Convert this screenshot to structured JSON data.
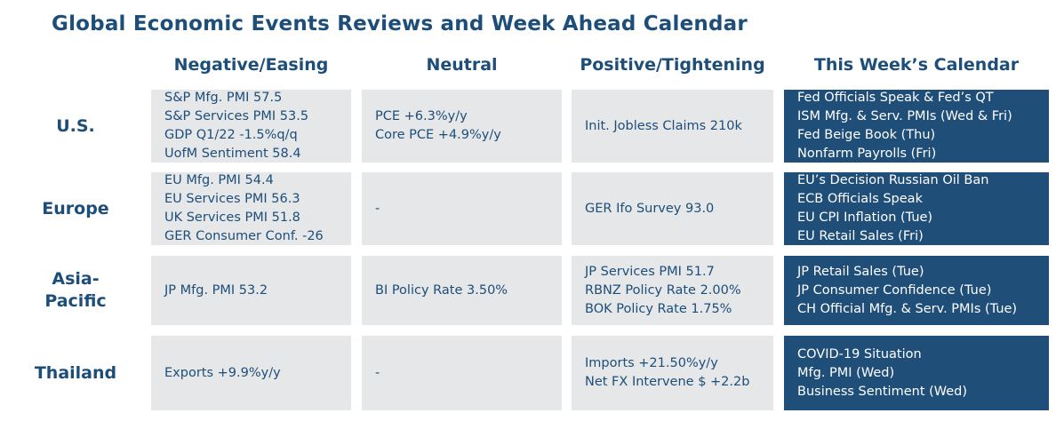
{
  "title": "Global Economic Events Reviews and Week Ahead Calendar",
  "columns": [
    "Negative/Easing",
    "Neutral",
    "Positive/Tightening",
    "This Week’s Calendar"
  ],
  "rows": [
    {
      "label": "U.S.",
      "negative": [
        "S&P Mfg. PMI 57.5",
        "S&P Services PMI 53.5",
        "GDP Q1/22 -1.5%q/q",
        "UofM Sentiment 58.4"
      ],
      "neutral": [
        "PCE +6.3%y/y",
        "Core PCE +4.9%y/y"
      ],
      "positive": [
        "Init. Jobless Claims 210k"
      ],
      "calendar": [
        "Fed Officials Speak & Fed’s QT",
        "ISM Mfg. & Serv. PMIs (Wed & Fri)",
        "Fed Beige Book (Thu)",
        "Nonfarm Payrolls (Fri)"
      ]
    },
    {
      "label": "Europe",
      "negative": [
        "EU Mfg. PMI 54.4",
        "EU Services PMI 56.3",
        "UK Services PMI 51.8",
        "GER Consumer Conf. -26"
      ],
      "neutral": [
        "-"
      ],
      "positive": [
        "GER Ifo Survey 93.0"
      ],
      "calendar": [
        "EU’s Decision Russian Oil Ban",
        "ECB Officials Speak",
        "EU CPI Inflation (Tue)",
        "EU Retail Sales (Fri)"
      ]
    },
    {
      "label_lines": [
        "Asia-",
        "Pacific"
      ],
      "negative": [
        "JP Mfg. PMI 53.2"
      ],
      "neutral": [
        "BI Policy Rate 3.50%"
      ],
      "positive": [
        "JP Services PMI 51.7",
        "RBNZ Policy Rate 2.00%",
        "BOK Policy Rate 1.75%"
      ],
      "calendar": [
        "JP Retail Sales (Tue)",
        "JP Consumer Confidence (Tue)",
        "CH Official Mfg. & Serv. PMIs (Tue)"
      ]
    },
    {
      "label": "Thailand",
      "negative": [
        "Exports +9.9%y/y"
      ],
      "neutral": [
        "-"
      ],
      "positive": [
        "Imports +21.50%y/y",
        "Net FX Intervene $ +2.2b"
      ],
      "calendar": [
        "COVID-19 Situation",
        "Mfg. PMI (Wed)",
        "Business Sentiment (Wed)"
      ]
    }
  ]
}
